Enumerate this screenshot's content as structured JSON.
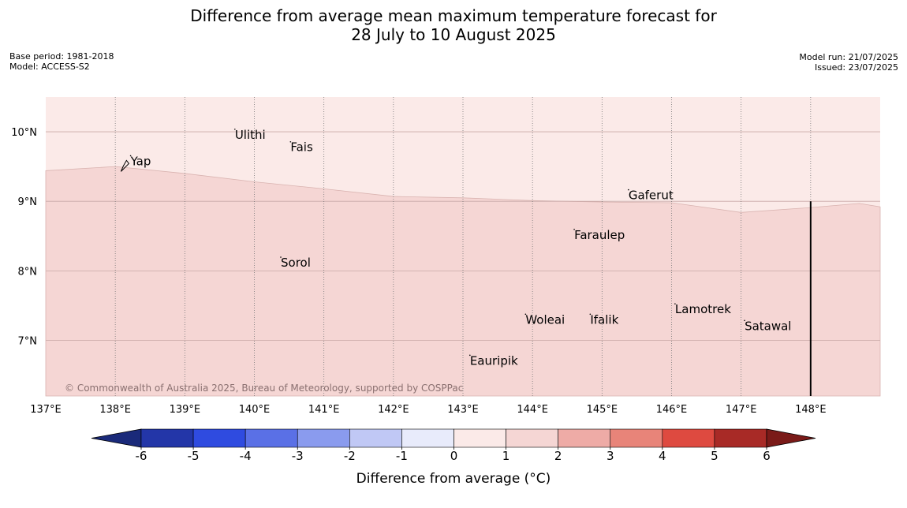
{
  "title": {
    "line1": "Difference from average mean maximum temperature forecast for",
    "line2": "28 July to 10 August 2025"
  },
  "meta_left": {
    "base_period": "Base period: 1981-2018",
    "model": "Model: ACCESS-S2"
  },
  "meta_right": {
    "model_run": "Model run: 21/07/2025",
    "issued": "Issued: 23/07/2025"
  },
  "map": {
    "lon_range": [
      137,
      149
    ],
    "lat_range": [
      6.2,
      10.5
    ],
    "lon_ticks": [
      {
        "value": 137,
        "label": "137°E"
      },
      {
        "value": 138,
        "label": "138°E"
      },
      {
        "value": 139,
        "label": "139°E"
      },
      {
        "value": 140,
        "label": "140°E"
      },
      {
        "value": 141,
        "label": "141°E"
      },
      {
        "value": 142,
        "label": "142°E"
      },
      {
        "value": 143,
        "label": "143°E"
      },
      {
        "value": 144,
        "label": "144°E"
      },
      {
        "value": 145,
        "label": "145°E"
      },
      {
        "value": 146,
        "label": "146°E"
      },
      {
        "value": 147,
        "label": "147°E"
      },
      {
        "value": 148,
        "label": "148°E"
      }
    ],
    "lat_ticks": [
      {
        "value": 10,
        "label": "10°N"
      },
      {
        "value": 9,
        "label": "9°N"
      },
      {
        "value": 8,
        "label": "8°N"
      },
      {
        "value": 7,
        "label": "7°N"
      }
    ],
    "regions": [
      {
        "category": "0 to 1",
        "color": "#fbeae8"
      },
      {
        "category": "1 to 2",
        "color": "#f5d6d4"
      }
    ],
    "region_boundary": [
      [
        137.0,
        9.44
      ],
      [
        138.0,
        9.5
      ],
      [
        139.0,
        9.4
      ],
      [
        140.0,
        9.28
      ],
      [
        141.0,
        9.18
      ],
      [
        142.0,
        9.07
      ],
      [
        143.0,
        9.05
      ],
      [
        144.0,
        9.01
      ],
      [
        145.0,
        8.99
      ],
      [
        146.0,
        8.98
      ],
      [
        147.0,
        8.84
      ],
      [
        148.0,
        8.91
      ],
      [
        148.7,
        8.97
      ],
      [
        149.0,
        8.92
      ]
    ],
    "vertical_line_lon": 148.0,
    "vertical_line_top_lat": 9.0,
    "places": [
      {
        "name": "Yap",
        "lon": 138.22,
        "lat": 9.52
      },
      {
        "name": "Ulithi",
        "lon": 139.72,
        "lat": 9.9
      },
      {
        "name": "Fais",
        "lon": 140.52,
        "lat": 9.72
      },
      {
        "name": "Gaferut",
        "lon": 145.38,
        "lat": 9.03
      },
      {
        "name": "Faraulep",
        "lon": 144.6,
        "lat": 8.46
      },
      {
        "name": "Sorol",
        "lon": 140.38,
        "lat": 8.06
      },
      {
        "name": "Woleai",
        "lon": 143.9,
        "lat": 7.24
      },
      {
        "name": "Ifalik",
        "lon": 144.83,
        "lat": 7.24
      },
      {
        "name": "Lamotrek",
        "lon": 146.05,
        "lat": 7.39
      },
      {
        "name": "Satawal",
        "lon": 147.05,
        "lat": 7.15
      },
      {
        "name": "Eauripik",
        "lon": 143.1,
        "lat": 6.65
      }
    ],
    "copyright": "© Commonwealth of Australia 2025, Bureau of Meteorology, supported by COSPPac"
  },
  "colorbar": {
    "label": "Difference from average (°C)",
    "ticks": [
      "-6",
      "-5",
      "-4",
      "-3",
      "-2",
      "-1",
      "0",
      "1",
      "2",
      "3",
      "4",
      "5",
      "6"
    ],
    "low_extension_color": "#1a2a7a",
    "high_extension_color": "#7a1a18",
    "colors": [
      "#2336a8",
      "#2f4be0",
      "#5a70e6",
      "#8a9bee",
      "#c0c8f5",
      "#e8ebfb",
      "#fbeae8",
      "#f5d6d4",
      "#eeaba6",
      "#e88479",
      "#de4a40",
      "#a82a26"
    ]
  }
}
